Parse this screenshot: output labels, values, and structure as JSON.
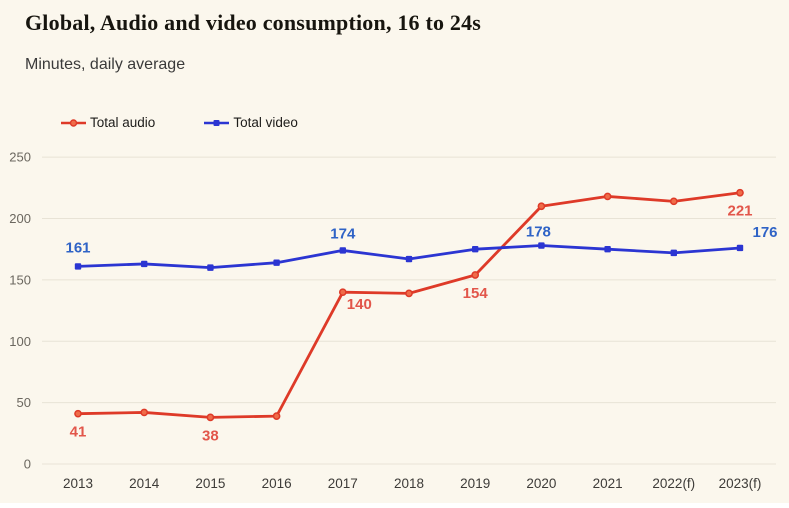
{
  "header": {
    "title": "Global, Audio and video consumption, 16 to 24s",
    "subtitle": "Minutes, daily average"
  },
  "chart_data": {
    "type": "line",
    "title": "Global, Audio and video consumption, 16 to 24s",
    "subtitle": "Minutes, daily average",
    "ylabel": "Minutes, daily average",
    "xlabel": "",
    "categories": [
      "2013",
      "2014",
      "2015",
      "2016",
      "2017",
      "2018",
      "2019",
      "2020",
      "2021",
      "2022(f)",
      "2023(f)"
    ],
    "series": [
      {
        "name": "Total audio",
        "color": "#de3a28",
        "marker": "circle",
        "marker_fill": "#ef6c49",
        "label_color": "#e2564a",
        "values": [
          41,
          42,
          38,
          39,
          140,
          139,
          154,
          210,
          218,
          214,
          221
        ],
        "point_labels": [
          41,
          null,
          38,
          null,
          140,
          null,
          154,
          null,
          null,
          null,
          221
        ]
      },
      {
        "name": "Total video",
        "color": "#2b35d2",
        "marker": "square",
        "marker_fill": "#2b35d2",
        "label_color": "#2f63c6",
        "values": [
          161,
          163,
          160,
          164,
          174,
          167,
          175,
          178,
          175,
          172,
          176
        ],
        "point_labels": [
          161,
          null,
          null,
          null,
          174,
          null,
          null,
          178,
          null,
          null,
          176
        ]
      }
    ],
    "yticks": [
      0,
      50,
      100,
      150,
      200,
      250
    ],
    "ylim": [
      0,
      250
    ],
    "grid": true,
    "legend_position": "top-left"
  },
  "colors": {
    "background": "#fbf7ed",
    "gridline": "#e8e3d6",
    "ytick_text": "#6b675f",
    "xtick_text": "#3d3b38",
    "title_text": "#17150f",
    "subtitle_text": "#3a3a3a"
  }
}
